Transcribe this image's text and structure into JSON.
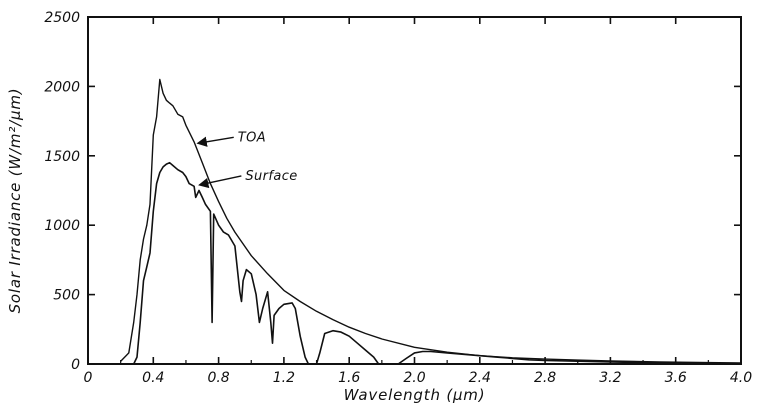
{
  "chart_data": {
    "type": "line",
    "title": "",
    "xlabel": "Wavelength (µm)",
    "ylabel": "Solar Irradiance (W/m²/µm)",
    "xlim": [
      0,
      4.0
    ],
    "ylim": [
      0,
      2500
    ],
    "xticks": [
      0,
      0.4,
      0.8,
      1.2,
      1.6,
      2.0,
      2.4,
      2.8,
      3.2,
      3.6,
      4.0
    ],
    "xtick_labels": [
      "0",
      "0.4",
      "0.8",
      "1.2",
      "1.6",
      "2.0",
      "2.4",
      "2.8",
      "3.2",
      "3.6",
      "4.0"
    ],
    "yticks": [
      0,
      500,
      1000,
      1500,
      2000,
      2500
    ],
    "ytick_labels": [
      "0",
      "500",
      "1000",
      "1500",
      "2000",
      "2500"
    ],
    "grid": false,
    "legend": "none",
    "colors": {
      "line": "#111111",
      "axis": "#111111"
    },
    "series": [
      {
        "name": "TOA",
        "x": [
          0.2,
          0.25,
          0.28,
          0.3,
          0.32,
          0.34,
          0.36,
          0.38,
          0.4,
          0.42,
          0.44,
          0.46,
          0.48,
          0.5,
          0.52,
          0.55,
          0.58,
          0.6,
          0.65,
          0.7,
          0.75,
          0.8,
          0.85,
          0.9,
          1.0,
          1.1,
          1.2,
          1.3,
          1.4,
          1.5,
          1.6,
          1.7,
          1.8,
          2.0,
          2.2,
          2.4,
          2.6,
          2.8,
          3.0,
          3.2,
          3.5,
          3.8,
          4.0
        ],
        "y": [
          20,
          80,
          300,
          500,
          750,
          900,
          1000,
          1150,
          1650,
          1780,
          2050,
          1950,
          1900,
          1880,
          1860,
          1800,
          1780,
          1720,
          1600,
          1450,
          1300,
          1170,
          1050,
          950,
          780,
          650,
          530,
          450,
          380,
          320,
          265,
          220,
          180,
          120,
          85,
          60,
          45,
          35,
          28,
          22,
          15,
          10,
          8
        ]
      },
      {
        "name": "Surface",
        "x": [
          0.28,
          0.3,
          0.32,
          0.34,
          0.36,
          0.38,
          0.4,
          0.42,
          0.44,
          0.46,
          0.48,
          0.5,
          0.52,
          0.55,
          0.58,
          0.6,
          0.62,
          0.65,
          0.66,
          0.68,
          0.7,
          0.72,
          0.75,
          0.76,
          0.77,
          0.8,
          0.83,
          0.86,
          0.9,
          0.93,
          0.94,
          0.95,
          0.97,
          1.0,
          1.03,
          1.05,
          1.07,
          1.1,
          1.12,
          1.13,
          1.14,
          1.17,
          1.2,
          1.25,
          1.27,
          1.3,
          1.33,
          1.35,
          1.38,
          1.4,
          1.42,
          1.45,
          1.5,
          1.55,
          1.6,
          1.65,
          1.7,
          1.75,
          1.78,
          1.8,
          1.85,
          1.9,
          1.95,
          2.0,
          2.05,
          2.1,
          2.2,
          2.3,
          2.4,
          2.5,
          2.6,
          2.7,
          2.8,
          3.0,
          3.2,
          3.4,
          3.6,
          3.8,
          4.0
        ],
        "y": [
          0,
          50,
          300,
          600,
          700,
          800,
          1100,
          1300,
          1380,
          1420,
          1440,
          1450,
          1430,
          1400,
          1380,
          1350,
          1300,
          1280,
          1200,
          1250,
          1200,
          1150,
          1100,
          300,
          1080,
          1000,
          950,
          930,
          850,
          520,
          450,
          600,
          680,
          650,
          500,
          300,
          400,
          520,
          300,
          150,
          350,
          400,
          430,
          440,
          400,
          200,
          50,
          0,
          0,
          0,
          80,
          220,
          240,
          230,
          200,
          150,
          100,
          50,
          0,
          0,
          0,
          0,
          40,
          80,
          90,
          90,
          80,
          70,
          60,
          50,
          40,
          30,
          25,
          20,
          15,
          10,
          8,
          6,
          5
        ]
      }
    ],
    "annotations": [
      {
        "text": "TOA",
        "points_to": "TOA"
      },
      {
        "text": "Surface",
        "points_to": "Surface"
      }
    ]
  }
}
